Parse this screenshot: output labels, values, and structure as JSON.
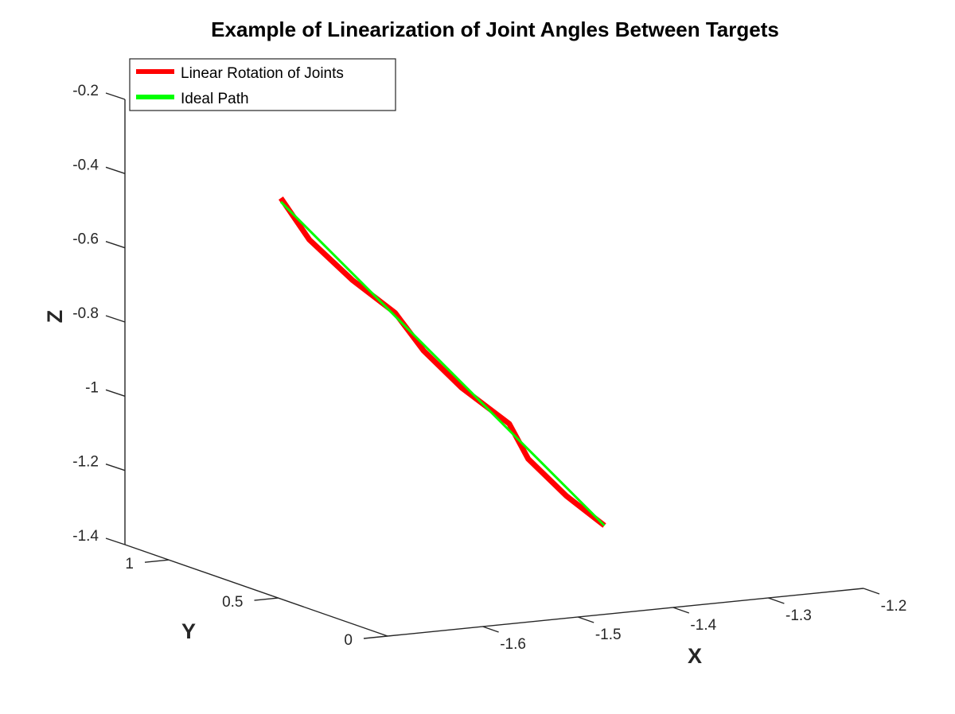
{
  "chart_data": {
    "type": "line",
    "title": "Example of Linearization of Joint Angles Between Targets",
    "xlabel": "X",
    "ylabel": "Y",
    "zlabel": "Z",
    "xlim": [
      -1.7,
      -1.2
    ],
    "ylim": [
      0,
      1.2
    ],
    "zlim": [
      -1.4,
      -0.2
    ],
    "x_ticks": [
      "-1.6",
      "-1.5",
      "-1.4",
      "-1.3",
      "-1.2"
    ],
    "y_ticks": [
      "0",
      "0.5",
      "1"
    ],
    "z_ticks": [
      "-0.2",
      "-0.4",
      "-0.6",
      "-0.8",
      "-1",
      "-1.2",
      "-1.4"
    ],
    "grid": false,
    "legend_position": "top-left",
    "series": [
      {
        "name": "Linear Rotation of Joints",
        "color": "#ff0000",
        "points": [
          [
            -1.665,
            0.64,
            -0.36
          ],
          [
            -1.635,
            0.64,
            -0.48
          ],
          [
            -1.59,
            0.64,
            -0.6
          ],
          [
            -1.545,
            0.64,
            -0.7
          ],
          [
            -1.515,
            0.64,
            -0.81
          ],
          [
            -1.475,
            0.64,
            -0.92
          ],
          [
            -1.425,
            0.64,
            -1.03
          ],
          [
            -1.405,
            0.64,
            -1.13
          ],
          [
            -1.365,
            0.64,
            -1.24
          ],
          [
            -1.325,
            0.64,
            -1.33
          ]
        ]
      },
      {
        "name": "Ideal Path",
        "color": "#00ff00",
        "points": [
          [
            -1.665,
            0.64,
            -0.37
          ],
          [
            -1.325,
            0.64,
            -1.33
          ]
        ]
      }
    ]
  }
}
